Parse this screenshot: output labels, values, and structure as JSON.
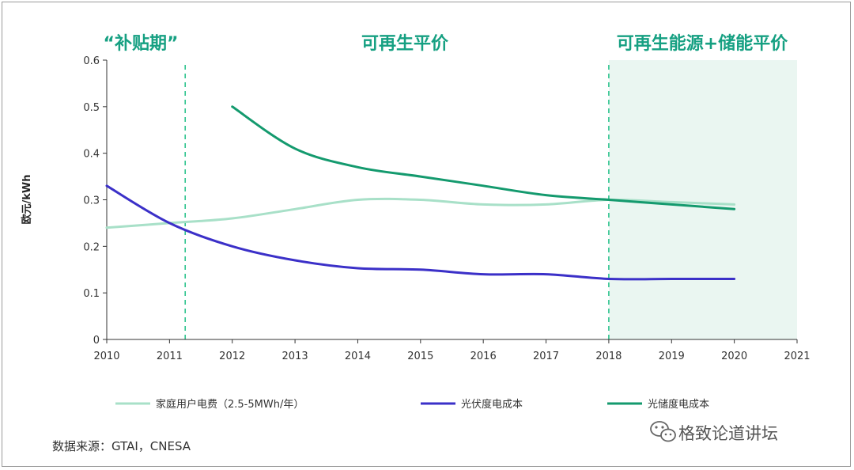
{
  "chart_data": {
    "type": "line",
    "title": "",
    "xlabel": "",
    "ylabel": "欧元/kWh",
    "xlim": [
      2010,
      2021
    ],
    "ylim": [
      0,
      0.6
    ],
    "x_ticks": [
      "2010",
      "2011",
      "2012",
      "2013",
      "2014",
      "2015",
      "2016",
      "2017",
      "2018",
      "2019",
      "2020",
      "2021"
    ],
    "y_ticks": [
      "0",
      "0.1",
      "0.2",
      "0.3",
      "0.4",
      "0.5",
      "0.6"
    ],
    "series": [
      {
        "name": "家庭用户电费（2.5-5MWh/年）",
        "color": "#a8e0c8",
        "points": [
          [
            2010,
            0.24
          ],
          [
            2011,
            0.25
          ],
          [
            2012,
            0.26
          ],
          [
            2013,
            0.28
          ],
          [
            2014,
            0.3
          ],
          [
            2015,
            0.3
          ],
          [
            2016,
            0.29
          ],
          [
            2017,
            0.29
          ],
          [
            2018,
            0.3
          ],
          [
            2019,
            0.295
          ],
          [
            2020,
            0.29
          ]
        ]
      },
      {
        "name": "光伏度电成本",
        "color": "#3b30c8",
        "points": [
          [
            2010,
            0.33
          ],
          [
            2011,
            0.25
          ],
          [
            2012,
            0.2
          ],
          [
            2013,
            0.17
          ],
          [
            2014,
            0.153
          ],
          [
            2015,
            0.15
          ],
          [
            2016,
            0.14
          ],
          [
            2017,
            0.14
          ],
          [
            2018,
            0.13
          ],
          [
            2019,
            0.13
          ],
          [
            2020,
            0.13
          ]
        ]
      },
      {
        "name": "光储度电成本",
        "color": "#149a6e",
        "points": [
          [
            2012,
            0.5
          ],
          [
            2013,
            0.41
          ],
          [
            2014,
            0.37
          ],
          [
            2015,
            0.35
          ],
          [
            2016,
            0.33
          ],
          [
            2017,
            0.31
          ],
          [
            2018,
            0.3
          ],
          [
            2019,
            0.29
          ],
          [
            2020,
            0.28
          ]
        ]
      }
    ],
    "phases": [
      {
        "label": "“补贴期”",
        "from": 2010,
        "to": 2011.25
      },
      {
        "label": "可再生平价",
        "from": 2011.25,
        "to": 2018
      },
      {
        "label": "可再生能源+储能平价",
        "from": 2018,
        "to": 2021
      }
    ],
    "dividers": [
      2011.25,
      2018
    ],
    "shaded_region": [
      2018,
      2021
    ]
  },
  "colors": {
    "phase_text": "#16a082",
    "divider": "#2ec48e",
    "shade": "#eaf6f1",
    "axis": "#333333"
  },
  "source": "数据来源：GTAI，CNESA",
  "watermark": {
    "text": "格致论道讲坛",
    "icon": "wechat-icon"
  }
}
